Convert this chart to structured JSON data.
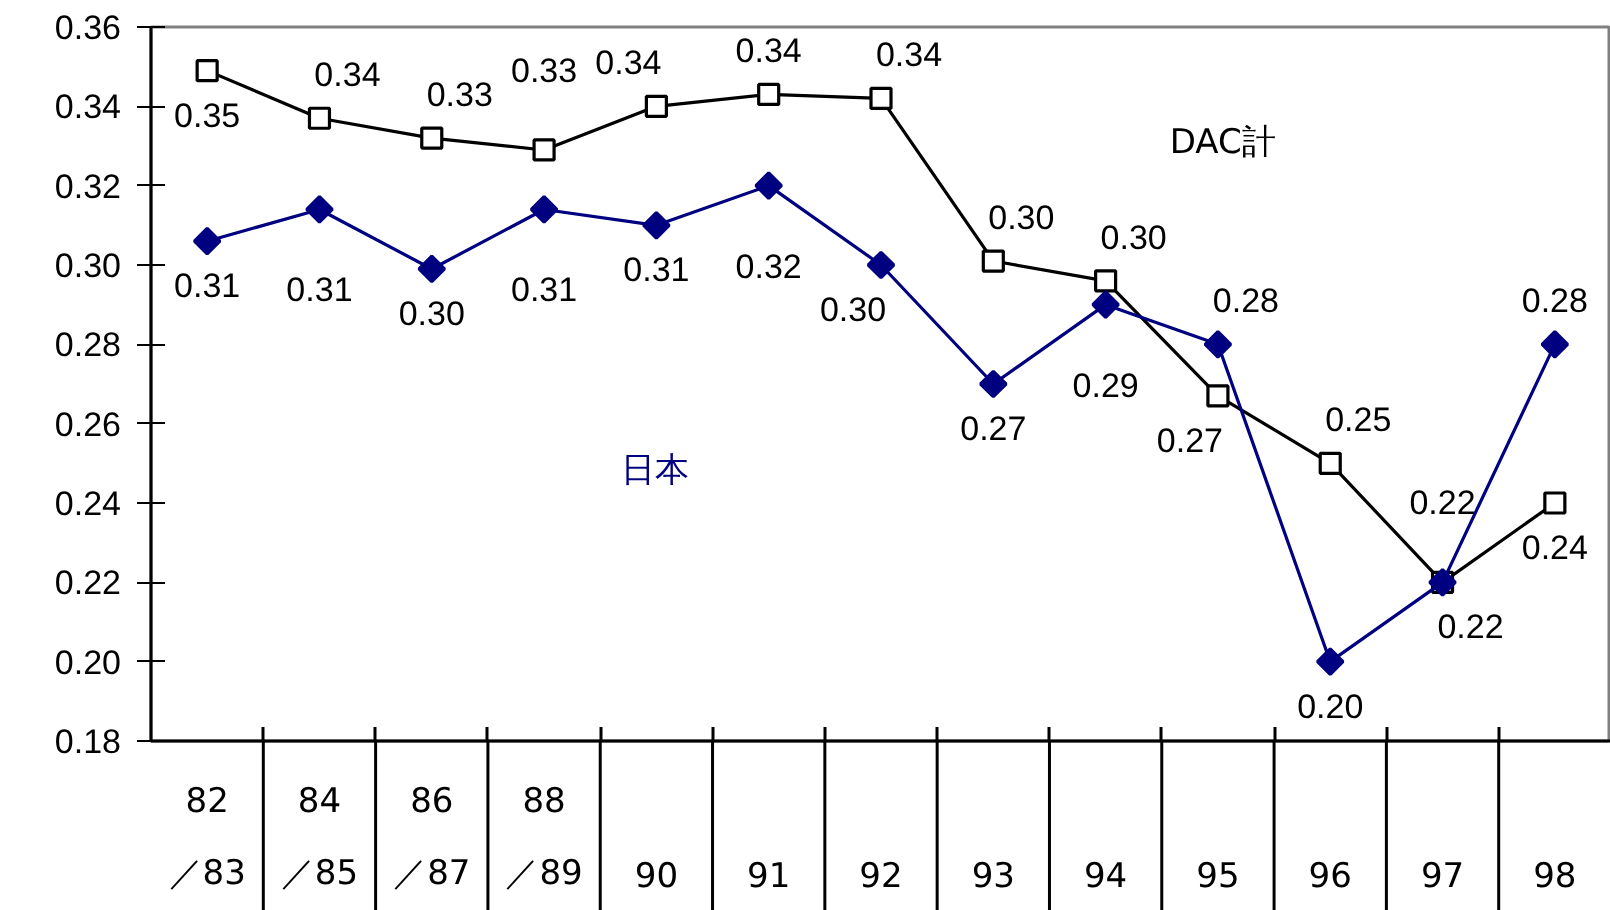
{
  "chart_data": {
    "type": "line",
    "categories": [
      "82\n／83",
      "84\n／85",
      "86\n／87",
      "88\n／89",
      "90",
      "91",
      "92",
      "93",
      "94",
      "95",
      "96",
      "97",
      "98"
    ],
    "ylim": [
      0.18,
      0.36
    ],
    "yticks": [
      0.18,
      {
        "value": 0.2,
        "label": "0.20"
      },
      0.22,
      0.24,
      0.26,
      0.28,
      {
        "value": 0.3,
        "label": "0.30"
      },
      0.32,
      0.34,
      0.36
    ],
    "series": [
      {
        "name": "DAC計",
        "color": "#000000",
        "marker": "square",
        "values": [
          0.349,
          0.337,
          0.332,
          0.329,
          0.34,
          0.343,
          0.342,
          0.301,
          0.296,
          0.267,
          0.25,
          0.22,
          0.24
        ],
        "value_labels": [
          "0.35",
          "0.34",
          "0.33",
          "0.33",
          "0.34",
          "0.34",
          "0.34",
          "0.30",
          "0.30",
          "0.27",
          "0.25",
          "0.22",
          "0.24"
        ]
      },
      {
        "name": "日本",
        "color": "#000080",
        "marker": "diamond",
        "values": [
          0.306,
          0.314,
          0.299,
          0.314,
          0.31,
          0.32,
          0.3,
          0.27,
          0.29,
          0.28,
          0.2,
          0.22,
          0.28
        ],
        "value_labels": [
          "0.31",
          "0.31",
          "0.30",
          "0.31",
          "0.31",
          "0.32",
          "0.30",
          "0.27",
          "0.29",
          "0.28",
          "0.20",
          "0.22",
          "0.28"
        ]
      }
    ]
  }
}
